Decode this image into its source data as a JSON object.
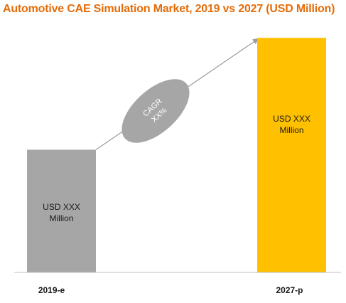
{
  "chart_data": {
    "type": "bar",
    "title": "Automotive CAE Simulation Market, 2019 vs 2027 (USD Million)",
    "categories": [
      "2019-e",
      "2027-p"
    ],
    "values": [
      170,
      325
    ],
    "ylim": [
      0,
      340
    ],
    "bar_labels": [
      [
        "USD XXX",
        "Million"
      ],
      [
        "USD XXX",
        "Million"
      ]
    ],
    "colors": [
      "#a6a6a6",
      "#ffc000"
    ],
    "annotation": {
      "label_line1": "CAGR",
      "label_line2": "XX%"
    },
    "grid": false,
    "legend": "none"
  }
}
